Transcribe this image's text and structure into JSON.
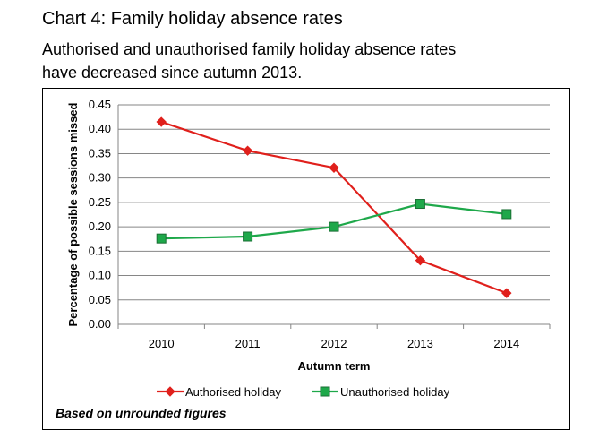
{
  "title_prefix": "Chart 4",
  "title_suffix": ": Family holiday absence rates",
  "subtitle_line1": "Authorised and unauthorised family holiday absence rates",
  "subtitle_line2": "have decreased since autumn 2013.",
  "footnote": "Based on unrounded figures",
  "colors": {
    "authorised": "#e0201c",
    "unauthorised": "#1ea84a",
    "grid": "#868686"
  },
  "chart_data": {
    "type": "line",
    "x": [
      "2010",
      "2011",
      "2012",
      "2013",
      "2014"
    ],
    "xlabel": "Autumn term",
    "ylabel": "Percentage of possible sessions missed",
    "ylim": [
      0,
      0.45
    ],
    "yticks": [
      "0.00",
      "0.05",
      "0.10",
      "0.15",
      "0.20",
      "0.25",
      "0.30",
      "0.35",
      "0.40",
      "0.45"
    ],
    "grid": true,
    "legend_position": "bottom",
    "series": [
      {
        "name": "Authorised holiday",
        "marker": "diamond",
        "values": [
          0.415,
          0.356,
          0.321,
          0.131,
          0.064
        ]
      },
      {
        "name": "Unauthorised holiday",
        "marker": "square",
        "values": [
          0.176,
          0.18,
          0.2,
          0.247,
          0.226
        ]
      }
    ]
  }
}
